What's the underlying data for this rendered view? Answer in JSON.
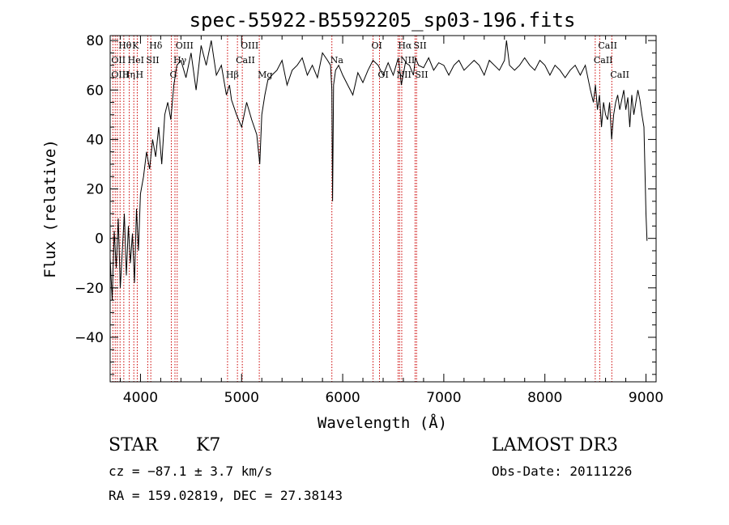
{
  "chart_data": {
    "type": "line",
    "title": "spec-55922-B5592205_sp03-196.fits",
    "xlabel": "Wavelength (Å)",
    "ylabel": "Flux (relative)",
    "xlim": [
      3700,
      9100
    ],
    "ylim": [
      -58,
      82
    ],
    "x_ticks": [
      4000,
      5000,
      6000,
      7000,
      8000,
      9000
    ],
    "y_ticks": [
      -40,
      -20,
      0,
      20,
      40,
      60,
      80
    ],
    "grid": false,
    "series": [
      {
        "x": [
          3700,
          3720,
          3740,
          3760,
          3780,
          3800,
          3820,
          3840,
          3860,
          3880,
          3900,
          3920,
          3940,
          3960,
          3980,
          4000,
          4030,
          4060,
          4090,
          4120,
          4150,
          4180,
          4210,
          4240,
          4270,
          4300,
          4330,
          4360,
          4400,
          4450,
          4500,
          4550,
          4600,
          4650,
          4700,
          4750,
          4800,
          4850,
          4880,
          4900,
          4950,
          5000,
          5050,
          5100,
          5150,
          5180,
          5200,
          5230,
          5260,
          5300,
          5350,
          5400,
          5450,
          5500,
          5550,
          5600,
          5650,
          5700,
          5750,
          5800,
          5850,
          5880,
          5893,
          5900,
          5910,
          5930,
          5960,
          6000,
          6050,
          6100,
          6150,
          6200,
          6250,
          6300,
          6350,
          6400,
          6450,
          6500,
          6550,
          6563,
          6580,
          6620,
          6660,
          6700,
          6720,
          6750,
          6800,
          6850,
          6900,
          6950,
          7000,
          7050,
          7100,
          7150,
          7200,
          7250,
          7300,
          7350,
          7400,
          7450,
          7500,
          7550,
          7600,
          7620,
          7650,
          7700,
          7750,
          7800,
          7850,
          7900,
          7950,
          8000,
          8050,
          8100,
          8150,
          8200,
          8250,
          8300,
          8350,
          8400,
          8450,
          8480,
          8500,
          8520,
          8540,
          8560,
          8580,
          8600,
          8620,
          8640,
          8660,
          8680,
          8700,
          8720,
          8740,
          8760,
          8780,
          8800,
          8820,
          8840,
          8860,
          8880,
          8900,
          8920,
          8940,
          8960,
          8980,
          9000,
          9010
        ],
        "values": [
          -8,
          -25,
          3,
          -12,
          8,
          -20,
          -5,
          10,
          -15,
          5,
          -10,
          2,
          -18,
          12,
          -5,
          18,
          25,
          35,
          28,
          40,
          33,
          45,
          30,
          50,
          55,
          48,
          62,
          70,
          72,
          65,
          75,
          60,
          78,
          70,
          80,
          66,
          70,
          58,
          62,
          56,
          50,
          45,
          55,
          48,
          42,
          30,
          50,
          58,
          64,
          66,
          68,
          72,
          62,
          68,
          70,
          73,
          66,
          70,
          65,
          75,
          72,
          70,
          60,
          15,
          62,
          68,
          70,
          66,
          62,
          58,
          67,
          63,
          68,
          72,
          70,
          66,
          71,
          66,
          73,
          69,
          62,
          71,
          70,
          66,
          73,
          70,
          69,
          73,
          68,
          71,
          70,
          66,
          70,
          72,
          68,
          70,
          72,
          70,
          66,
          72,
          70,
          68,
          72,
          80,
          70,
          68,
          70,
          73,
          70,
          68,
          72,
          70,
          66,
          70,
          68,
          65,
          68,
          70,
          66,
          70,
          60,
          55,
          62,
          52,
          58,
          45,
          55,
          50,
          48,
          55,
          40,
          50,
          55,
          58,
          52,
          56,
          60,
          52,
          57,
          45,
          58,
          50,
          55,
          60,
          56,
          50,
          45,
          10,
          -1
        ]
      }
    ],
    "line_labels": [
      {
        "text": "Hθ",
        "x": 3798,
        "row": 0
      },
      {
        "text": "K",
        "x": 3934,
        "row": 0
      },
      {
        "text": "Hδ",
        "x": 4102,
        "row": 0
      },
      {
        "text": "OII",
        "x": 3727,
        "row": 1
      },
      {
        "text": "HeI",
        "x": 3889,
        "row": 1
      },
      {
        "text": "SII",
        "x": 4072,
        "row": 1
      },
      {
        "text": "OIII",
        "x": 3727,
        "row": 2
      },
      {
        "text": "Hη",
        "x": 3835,
        "row": 2
      },
      {
        "text": "H",
        "x": 3968,
        "row": 2
      },
      {
        "text": "OIII",
        "x": 4363,
        "row": 0
      },
      {
        "text": "Hγ",
        "x": 4341,
        "row": 1
      },
      {
        "text": "G",
        "x": 4305,
        "row": 2
      },
      {
        "text": "OIII",
        "x": 5007,
        "row": 0
      },
      {
        "text": "CaII",
        "x": 4959,
        "row": 1
      },
      {
        "text": "Hβ",
        "x": 4861,
        "row": 2
      },
      {
        "text": "Mg",
        "x": 5175,
        "row": 2
      },
      {
        "text": "Na",
        "x": 5893,
        "row": 1
      },
      {
        "text": "OI",
        "x": 6300,
        "row": 0
      },
      {
        "text": "OI",
        "x": 6364,
        "row": 2
      },
      {
        "text": "Hα",
        "x": 6563,
        "row": 0
      },
      {
        "text": "SII",
        "x": 6716,
        "row": 0
      },
      {
        "text": "NII",
        "x": 6584,
        "row": 1
      },
      {
        "text": "NII",
        "x": 6548,
        "row": 2
      },
      {
        "text": "SII",
        "x": 6731,
        "row": 2
      },
      {
        "text": "CaII",
        "x": 8542,
        "row": 0
      },
      {
        "text": "CaII",
        "x": 8498,
        "row": 1
      },
      {
        "text": "CaII",
        "x": 8662,
        "row": 2
      }
    ],
    "line_positions": [
      3727,
      3750,
      3771,
      3798,
      3835,
      3889,
      3934,
      3968,
      4072,
      4102,
      4305,
      4341,
      4363,
      4861,
      4959,
      5007,
      5175,
      5893,
      6300,
      6364,
      6548,
      6563,
      6584,
      6716,
      6731,
      8498,
      8542,
      8662
    ],
    "line_color": "#cc0000"
  },
  "info": {
    "object_class": "STAR",
    "subclass": "K7",
    "survey": "LAMOST DR3",
    "cz": "cz = −87.1 ± 3.7 km/s",
    "obs_date": "Obs-Date: 20111226",
    "coords": "RA = 159.02819, DEC =  27.38143"
  }
}
